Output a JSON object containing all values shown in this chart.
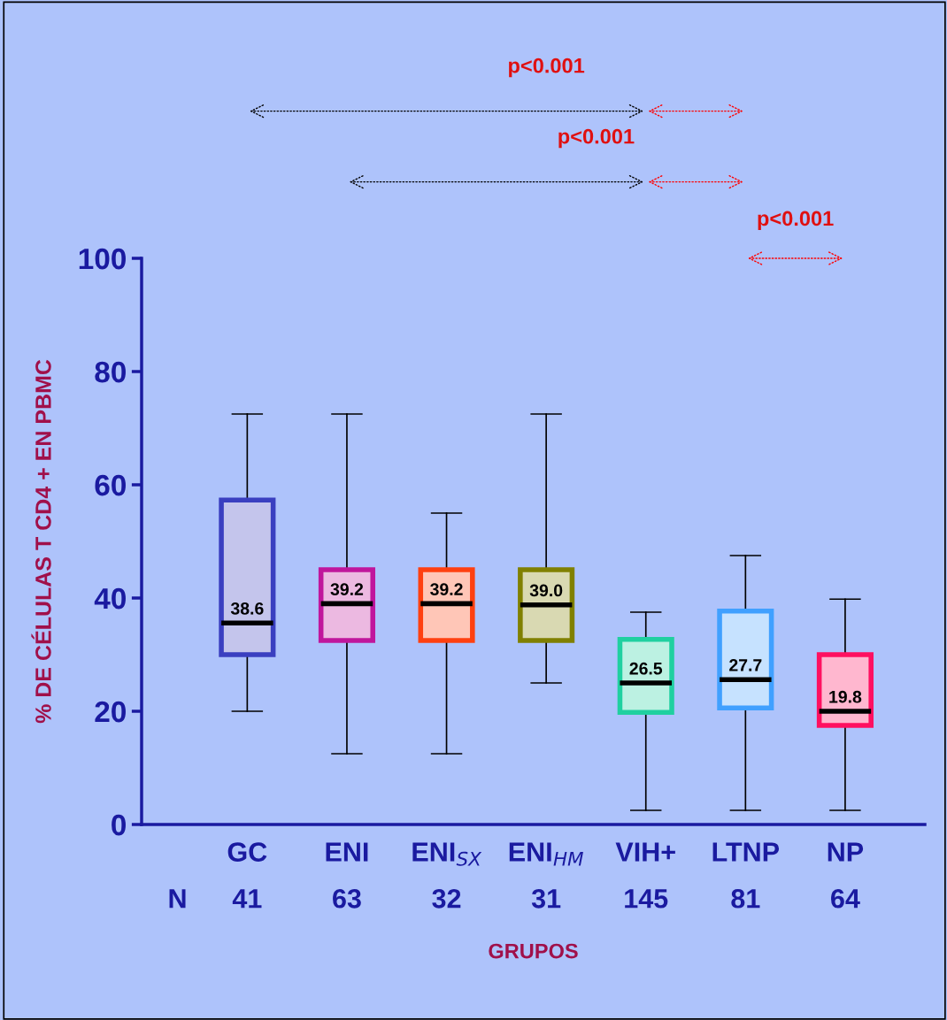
{
  "chart_data": {
    "type": "box",
    "ylabel": "% DE CÉLULAS T CD4 + EN PBMC",
    "xlabel": "GRUPOS",
    "categories": [
      "GC",
      "ENI",
      "ENI$_{SX}$",
      "ENI$_{HM}$",
      "VIH+",
      "LTNP",
      "NP"
    ],
    "boxes": [
      {
        "low": 20,
        "q1": 30,
        "median": 35.6,
        "q3": 57.3,
        "high": 72.5
      },
      {
        "low": 12.5,
        "q1": 32.5,
        "median": 39,
        "q3": 45,
        "high": 72.5
      },
      {
        "low": 12.5,
        "q1": 32.5,
        "median": 39,
        "q3": 45,
        "high": 55
      },
      {
        "low": 25,
        "q1": 32.5,
        "median": 38.8,
        "q3": 45,
        "high": 72.5
      },
      {
        "low": 2.5,
        "q1": 19.8,
        "median": 25,
        "q3": 32.7,
        "high": 37.5
      },
      {
        "low": 2.5,
        "q1": 20.6,
        "median": 25.6,
        "q3": 37.7,
        "high": 47.5
      },
      {
        "low": 2.5,
        "q1": 17.5,
        "median": 20,
        "q3": 30,
        "high": 39.8
      }
    ],
    "colors": [
      "#3a3fc0",
      "#c0169c",
      "#ff4010",
      "#808000",
      "#20d0a0",
      "#40a0ff",
      "#ff1060"
    ],
    "value_labels": [
      "38.6",
      "39.2",
      "39.2",
      "39.0",
      "26.5",
      "27.7",
      "19.8"
    ],
    "ylim": [
      0,
      100
    ],
    "yticks": [
      0,
      20,
      40,
      60,
      80,
      100
    ],
    "grid": false,
    "legend": false,
    "annotations": [
      "N",
      "41",
      "63",
      "32",
      "31",
      "145",
      "81",
      "64",
      "p<0.001",
      "p<0.001",
      "p<0.001"
    ]
  }
}
